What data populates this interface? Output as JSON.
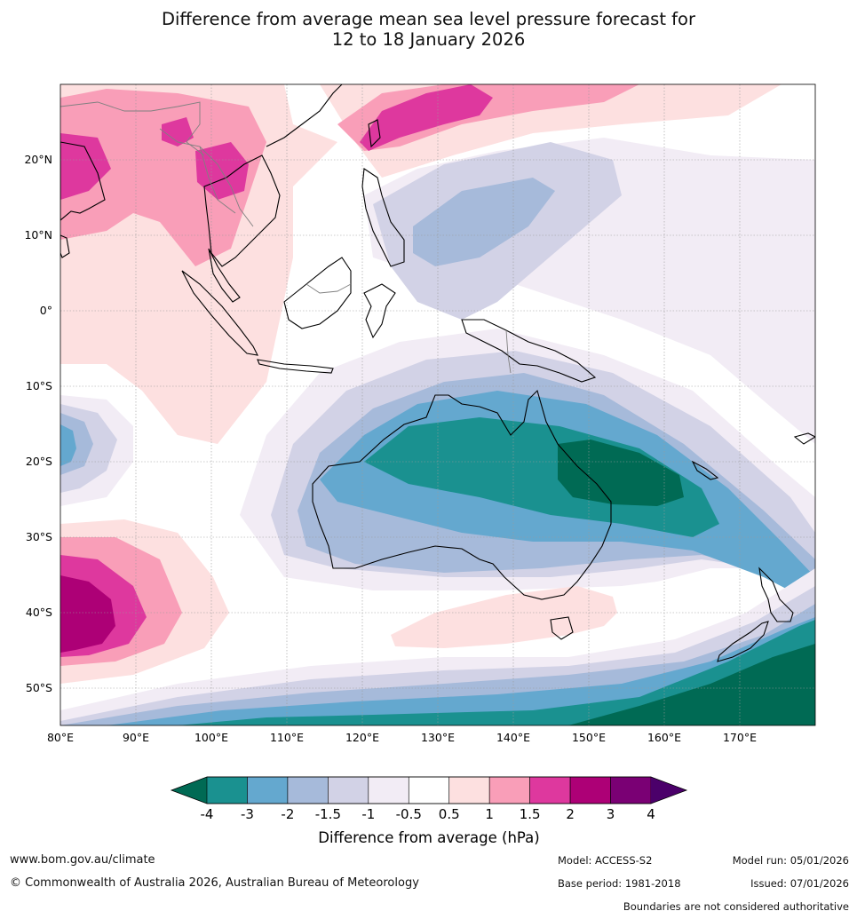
{
  "title": {
    "line1": "Difference from average mean sea level pressure forecast for",
    "line2": "12 to 18 January 2026"
  },
  "map": {
    "lon_ticks": [
      "80°E",
      "90°E",
      "100°E",
      "110°E",
      "120°E",
      "130°E",
      "140°E",
      "150°E",
      "160°E",
      "170°E"
    ],
    "lat_ticks": [
      "20°N",
      "10°N",
      "0°",
      "10°S",
      "20°S",
      "30°S",
      "40°S",
      "50°S"
    ],
    "extent": {
      "lon_min": 80,
      "lon_max": 180,
      "lat_min": -55,
      "lat_max": 30
    }
  },
  "legend": {
    "label": "Difference from average (hPa)",
    "ticks": [
      "-4",
      "-3",
      "-2",
      "-1.5",
      "-1",
      "-0.5",
      "0.5",
      "1",
      "1.5",
      "2",
      "3",
      "4"
    ],
    "colors": [
      "#006a54",
      "#1a9190",
      "#64a8cf",
      "#a6bada",
      "#d2d2e6",
      "#f2ecf5",
      "#ffffff",
      "#fde0e0",
      "#f99eb8",
      "#de389e",
      "#ad0076",
      "#7a0074",
      "#4b006a"
    ]
  },
  "footer": {
    "website": "www.bom.gov.au/climate",
    "copyright": "© Commonwealth of Australia 2026, Australian Bureau of Meteorology",
    "model": "Model: ACCESS-S2",
    "base_period": "Base period: 1981-2018",
    "model_run": "Model run: 05/01/2026",
    "issued": "Issued: 07/01/2026",
    "disclaimer": "Boundaries are not considered authoritative"
  }
}
